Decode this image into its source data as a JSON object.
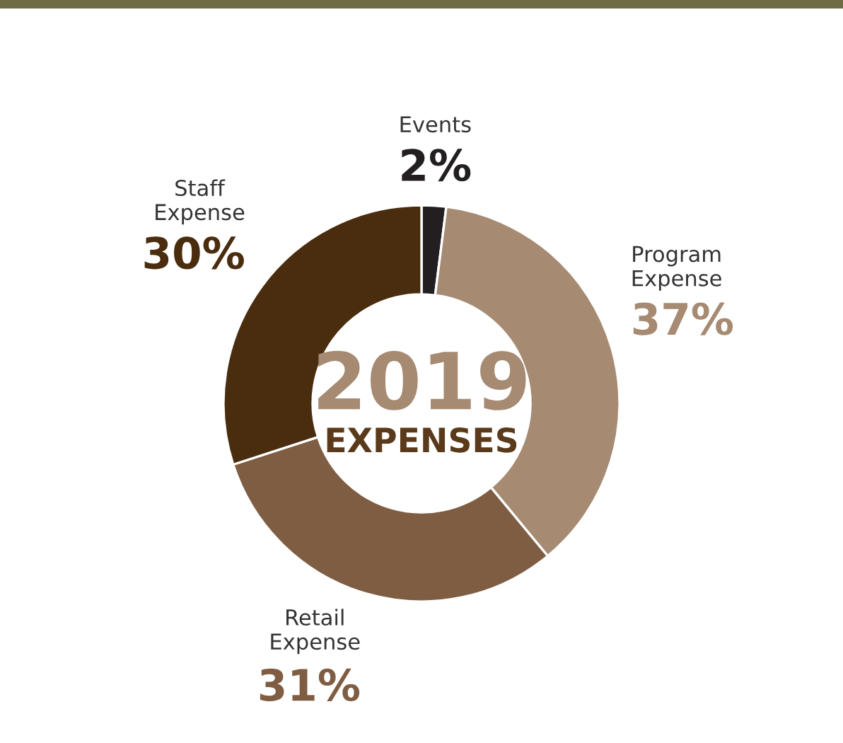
{
  "chart_data": {
    "type": "donut",
    "title": "2019",
    "subtitle": "EXPENSES",
    "categories": [
      "Events",
      "Program\nExpense",
      "Retail\nExpense",
      "Staff\nExpense"
    ],
    "values": [
      2,
      37,
      31,
      30
    ],
    "colors": [
      "#231f20",
      "#a68a72",
      "#7f5d42",
      "#4a2c0e"
    ],
    "value_labels": [
      "2%",
      "37%",
      "31%",
      "30%"
    ]
  }
}
